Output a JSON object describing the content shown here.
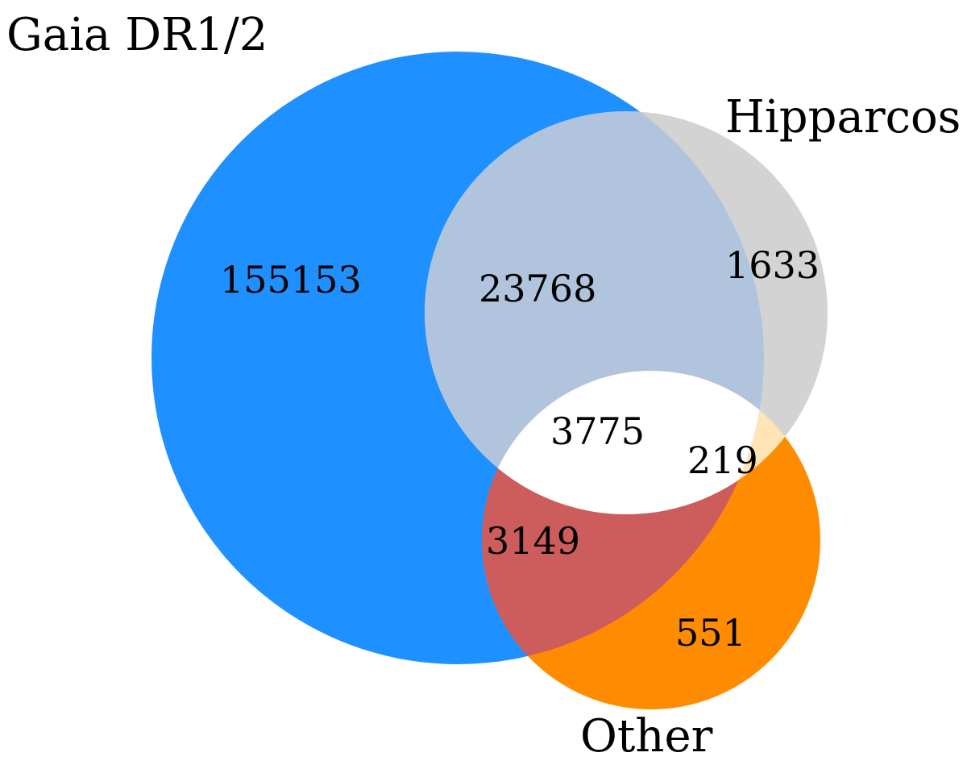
{
  "sets": {
    "gaia": {
      "label": "Gaia DR1/2",
      "color": "#1e90ff"
    },
    "hipparcos": {
      "label": "Hipparcos",
      "color": "#d3d3d3"
    },
    "other": {
      "label": "Other",
      "color": "#ff8c00"
    }
  },
  "regions": {
    "gaia_only": {
      "count": "155153"
    },
    "hipparcos_only": {
      "count": "1633"
    },
    "other_only": {
      "count": "551"
    },
    "gaia_hipparcos": {
      "count": "23768",
      "color": "#b0c4de"
    },
    "hipparcos_other": {
      "count": "219",
      "color": "#ffe4b5"
    },
    "gaia_other": {
      "count": "3149",
      "color": "#cd5c5c"
    },
    "all_three": {
      "count": "3775",
      "color": "#ffffff"
    }
  }
}
